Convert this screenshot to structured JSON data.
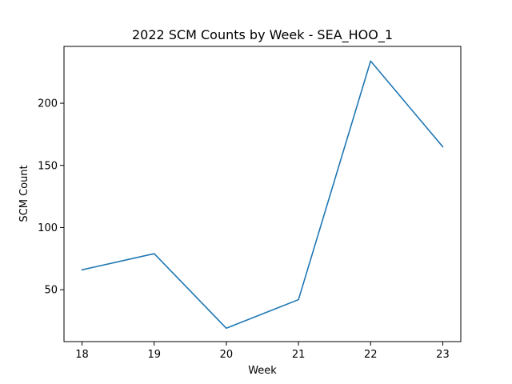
{
  "chart_data": {
    "type": "line",
    "title": "2022 SCM Counts by Week - SEA_HOO_1",
    "xlabel": "Week",
    "ylabel": "SCM Count",
    "x": [
      18,
      19,
      20,
      21,
      22,
      23
    ],
    "series": [
      {
        "values": [
          66,
          79,
          19,
          42,
          234,
          165
        ],
        "color": "#1f77b4"
      }
    ],
    "xlim": [
      17.75,
      23.25
    ],
    "ylim": [
      8.25,
      245.75
    ],
    "xticks": [
      "18",
      "19",
      "20",
      "21",
      "22",
      "23"
    ],
    "yticks": [
      "50",
      "100",
      "150",
      "200"
    ],
    "grid": false
  }
}
